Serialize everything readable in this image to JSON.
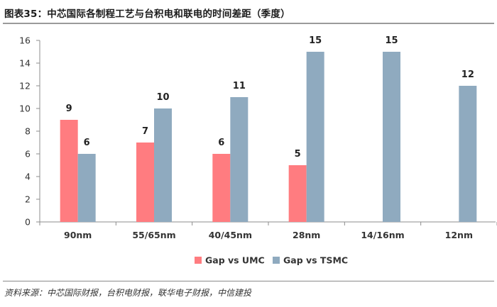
{
  "header": {
    "title": "图表35：中芯国际各制程工艺与台积电和联电的时间差距（季度）"
  },
  "footer": {
    "source": "资料来源：中芯国际财报，台积电财报，联华电子财报，中信建投"
  },
  "chart_data": {
    "type": "bar",
    "categories": [
      "90nm",
      "55/65nm",
      "40/45nm",
      "28nm",
      "14/16nm",
      "12nm"
    ],
    "series": [
      {
        "name": "Gap vs UMC",
        "values": [
          9,
          7,
          6,
          5,
          null,
          null
        ],
        "color": "#ff7c80"
      },
      {
        "name": "Gap vs TSMC",
        "values": [
          6,
          10,
          11,
          15,
          15,
          12
        ],
        "color": "#8faabf"
      }
    ],
    "ylim": [
      0,
      16
    ],
    "yticks": [
      0,
      2,
      4,
      6,
      8,
      10,
      12,
      14,
      16
    ],
    "grid": false,
    "legend_position": "bottom-center",
    "data_labels": true
  }
}
